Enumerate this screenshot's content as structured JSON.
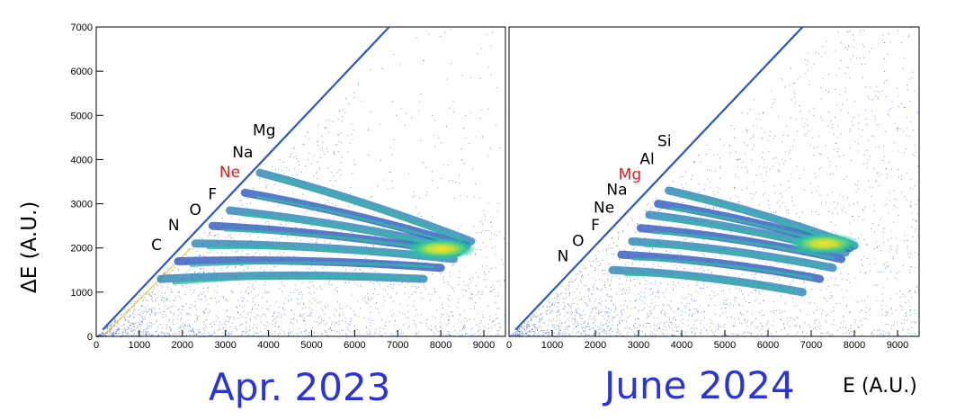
{
  "y_axis_label": "ΔE (A.U.)",
  "x_axis_label": "E (A.U.)",
  "panels": [
    {
      "caption": "Apr. 2023"
    },
    {
      "caption": "June 2024"
    }
  ],
  "colors": {
    "caption": "#2b34d6",
    "highlight": "#e02020",
    "scatter": "#1f3fb0"
  },
  "chart_data": [
    {
      "type": "scatter",
      "title": "",
      "xlabel": "E (A.U.)",
      "ylabel": "ΔE (A.U.)",
      "xlim": [
        0,
        9500
      ],
      "ylim": [
        0,
        7000
      ],
      "x_ticks": [
        "0",
        "1000",
        "2000",
        "3000",
        "4000",
        "5000",
        "6000",
        "7000",
        "8000",
        "9000"
      ],
      "y_ticks": [
        "0",
        "1000",
        "2000",
        "3000",
        "4000",
        "5000",
        "6000",
        "7000"
      ],
      "caption": "Apr. 2023",
      "element_labels": [
        {
          "text": "C",
          "x": 1400,
          "y": 1950,
          "highlight": false
        },
        {
          "text": "N",
          "x": 1800,
          "y": 2400,
          "highlight": false
        },
        {
          "text": "O",
          "x": 2300,
          "y": 2750,
          "highlight": false
        },
        {
          "text": "F",
          "x": 2700,
          "y": 3100,
          "highlight": false
        },
        {
          "text": "Ne",
          "x": 3100,
          "y": 3600,
          "highlight": true
        },
        {
          "text": "Na",
          "x": 3400,
          "y": 4050,
          "highlight": false
        },
        {
          "text": "Mg",
          "x": 3900,
          "y": 4550,
          "highlight": false
        }
      ],
      "bands": [
        {
          "x0": 1500,
          "y0": 1300,
          "x1": 7600,
          "y1": 1300
        },
        {
          "x0": 1900,
          "y0": 1700,
          "x1": 8000,
          "y1": 1550
        },
        {
          "x0": 2300,
          "y0": 2100,
          "x1": 8300,
          "y1": 1750
        },
        {
          "x0": 2700,
          "y0": 2500,
          "x1": 8400,
          "y1": 1900
        },
        {
          "x0": 3100,
          "y0": 2850,
          "x1": 8500,
          "y1": 1980
        },
        {
          "x0": 3450,
          "y0": 3250,
          "x1": 8600,
          "y1": 2050
        },
        {
          "x0": 3800,
          "y0": 3700,
          "x1": 8700,
          "y1": 2150
        }
      ],
      "hotspot": {
        "x": 8000,
        "y": 1980
      }
    },
    {
      "type": "scatter",
      "title": "",
      "xlabel": "E (A.U.)",
      "ylabel": "ΔE (A.U.)",
      "xlim": [
        0,
        9500
      ],
      "ylim": [
        0,
        7000
      ],
      "x_ticks": [
        "0",
        "1000",
        "2000",
        "3000",
        "4000",
        "5000",
        "6000",
        "7000",
        "8000",
        "9000"
      ],
      "y_ticks": [],
      "caption": "June 2024",
      "element_labels": [
        {
          "text": "N",
          "x": 1250,
          "y": 1700,
          "highlight": false
        },
        {
          "text": "O",
          "x": 1600,
          "y": 2050,
          "highlight": false
        },
        {
          "text": "F",
          "x": 2000,
          "y": 2400,
          "highlight": false
        },
        {
          "text": "Ne",
          "x": 2200,
          "y": 2800,
          "highlight": false
        },
        {
          "text": "Na",
          "x": 2500,
          "y": 3200,
          "highlight": false
        },
        {
          "text": "Mg",
          "x": 2800,
          "y": 3550,
          "highlight": true
        },
        {
          "text": "Al",
          "x": 3200,
          "y": 3900,
          "highlight": false
        },
        {
          "text": "Si",
          "x": 3600,
          "y": 4300,
          "highlight": false
        }
      ],
      "bands": [
        {
          "x0": 2400,
          "y0": 1500,
          "x1": 6800,
          "y1": 1000
        },
        {
          "x0": 2600,
          "y0": 1850,
          "x1": 7200,
          "y1": 1300
        },
        {
          "x0": 2850,
          "y0": 2150,
          "x1": 7500,
          "y1": 1550
        },
        {
          "x0": 3050,
          "y0": 2450,
          "x1": 7700,
          "y1": 1750
        },
        {
          "x0": 3250,
          "y0": 2750,
          "x1": 7800,
          "y1": 1900
        },
        {
          "x0": 3450,
          "y0": 3000,
          "x1": 7900,
          "y1": 2000
        },
        {
          "x0": 3700,
          "y0": 3300,
          "x1": 8000,
          "y1": 2050
        }
      ],
      "hotspot": {
        "x": 7300,
        "y": 2100
      }
    }
  ]
}
